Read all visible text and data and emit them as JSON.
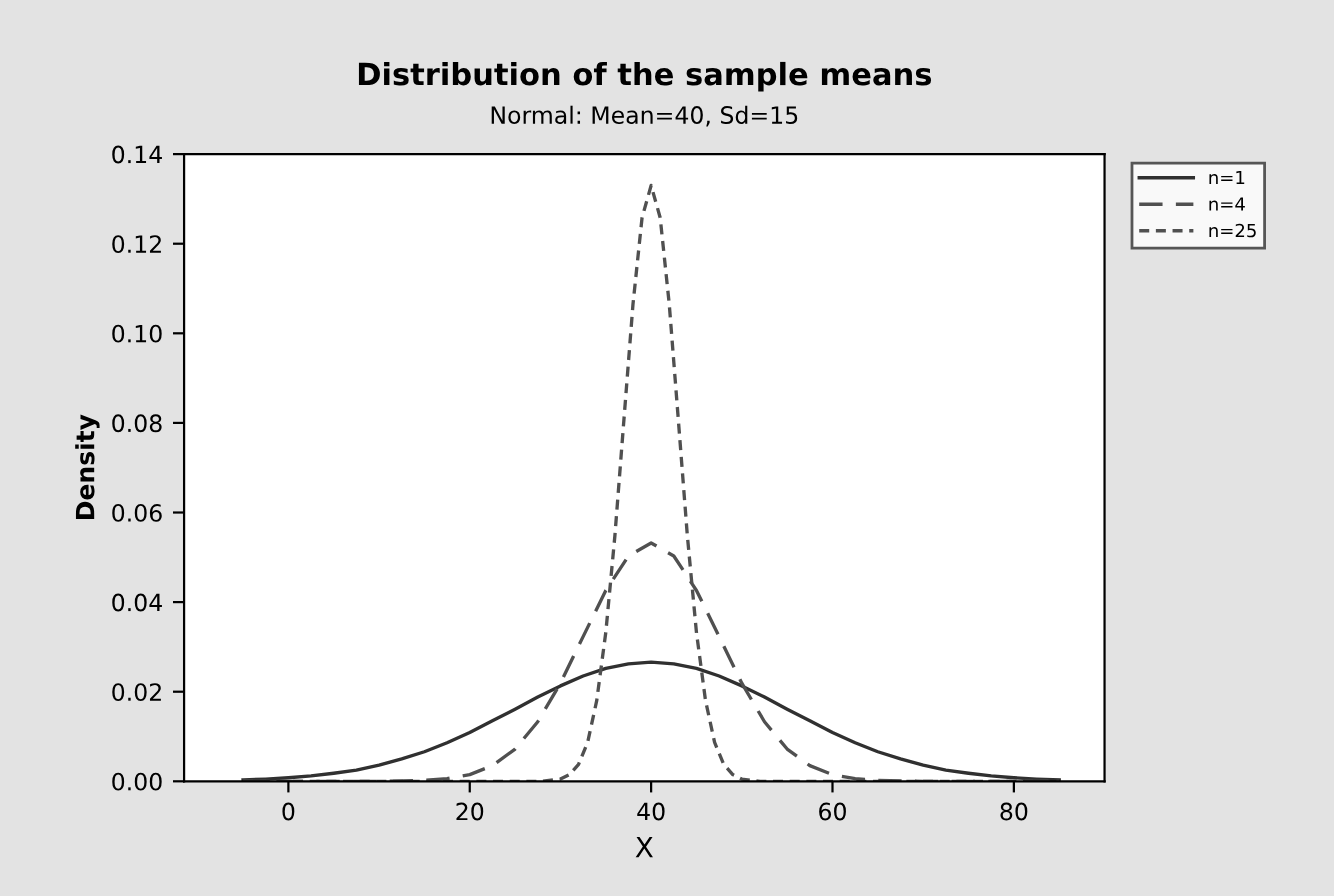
{
  "chart_data": {
    "type": "line",
    "title": "Distribution of the sample means",
    "subtitle": "Normal: Mean=40, Sd=15",
    "xlabel": "X",
    "ylabel": "Density",
    "xlim": [
      -11.5,
      90
    ],
    "xticks": [
      0,
      20,
      40,
      60,
      80
    ],
    "ylim": [
      0,
      0.14
    ],
    "yticks": [
      {
        "value": 0,
        "label": "0.00"
      },
      {
        "value": 0.02,
        "label": "0.02"
      },
      {
        "value": 0.04,
        "label": "0.04"
      },
      {
        "value": 0.06,
        "label": "0.06"
      },
      {
        "value": 0.08,
        "label": "0.08"
      },
      {
        "value": 0.1,
        "label": "0.10"
      },
      {
        "value": 0.12,
        "label": "0.12"
      },
      {
        "value": 0.14,
        "label": "0.14"
      }
    ],
    "grid": false,
    "legend": "right",
    "marker": "none",
    "series": [
      {
        "name": "n=1",
        "color": "#303030",
        "line_style": "solid",
        "x": [
          -5,
          -2.5,
          0,
          2.5,
          5,
          7.5,
          10,
          12.5,
          15,
          17.5,
          20,
          22.5,
          25,
          27.5,
          30,
          32.5,
          35,
          37.5,
          40,
          42.5,
          45,
          47.5,
          50,
          52.5,
          55,
          57.5,
          60,
          62.5,
          65,
          67.5,
          70,
          72.5,
          75,
          77.5,
          80,
          82.5,
          85
        ],
        "values": [
          0.0003,
          0.0005,
          0.0008,
          0.0012,
          0.0018,
          0.0025,
          0.0036,
          0.005,
          0.0066,
          0.0086,
          0.0109,
          0.0135,
          0.0161,
          0.0188,
          0.0213,
          0.0235,
          0.0252,
          0.0262,
          0.0266,
          0.0262,
          0.0252,
          0.0235,
          0.0213,
          0.0188,
          0.0161,
          0.0135,
          0.0109,
          0.0086,
          0.0066,
          0.005,
          0.0036,
          0.0025,
          0.0018,
          0.0012,
          0.0008,
          0.0005,
          0.0003
        ]
      },
      {
        "name": "n=4",
        "color": "#505050",
        "line_style": "dashed",
        "x": [
          -5,
          10,
          15,
          17.5,
          20,
          22.5,
          25,
          27.5,
          30,
          32.5,
          35,
          37.5,
          40,
          42.5,
          45,
          47.5,
          50,
          52.5,
          55,
          57.5,
          60,
          62.5,
          65,
          70,
          85
        ],
        "values": [
          0,
          0,
          0.0002,
          0.0006,
          0.0015,
          0.0035,
          0.0072,
          0.0133,
          0.0219,
          0.0323,
          0.0426,
          0.0503,
          0.0532,
          0.0503,
          0.0426,
          0.0323,
          0.0219,
          0.0133,
          0.0072,
          0.0035,
          0.0015,
          0.0006,
          0.0002,
          0,
          0
        ]
      },
      {
        "name": "n=25",
        "color": "#505050",
        "line_style": "dotted",
        "x": [
          -5,
          28,
          30,
          31,
          32,
          33,
          34,
          35,
          36,
          37,
          38,
          39,
          40,
          41,
          42,
          43,
          44,
          45,
          46,
          47,
          48,
          49,
          50,
          52,
          85
        ],
        "values": [
          0,
          0,
          0.0005,
          0.0015,
          0.0038,
          0.0087,
          0.018,
          0.0332,
          0.0547,
          0.0807,
          0.1065,
          0.1258,
          0.133,
          0.1258,
          0.1065,
          0.0807,
          0.0547,
          0.0332,
          0.018,
          0.0087,
          0.0038,
          0.0015,
          0.0005,
          0,
          0
        ]
      }
    ]
  }
}
